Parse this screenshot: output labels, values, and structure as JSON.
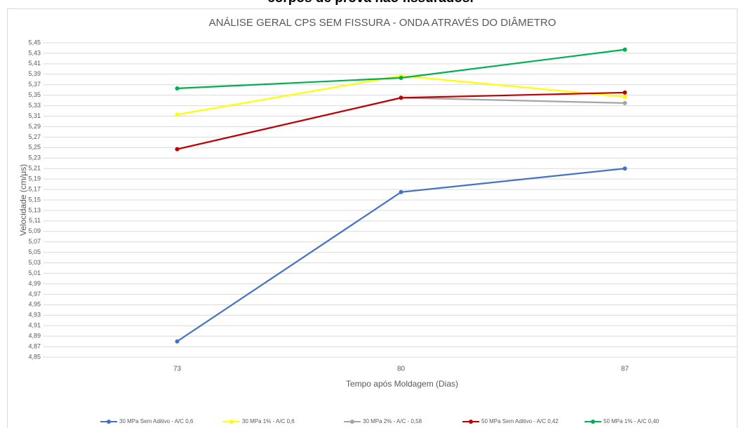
{
  "caption": "corpos de prova não fissurados.",
  "chart_data": {
    "type": "line",
    "title": "ANÁLISE GERAL CPS SEM FISSURA - ONDA ATRAVÉS DO DIÂMETRO",
    "xlabel": "Tempo após Moldagem (Dias)",
    "ylabel": "Velocidade (cm/μs)",
    "categories": [
      "73",
      "80",
      "87"
    ],
    "series": [
      {
        "name": "30 MPa Sem Aditivo - A/C 0,6",
        "color": "#4472c4",
        "values": [
          4.88,
          5.165,
          5.21
        ]
      },
      {
        "name": "30 MPa 1% - A/C 0,6",
        "color": "#ffff00",
        "values": [
          5.313,
          5.387,
          5.347
        ]
      },
      {
        "name": "30 MPa 2% - A/C - 0,58",
        "color": "#a5a5a5",
        "values": [
          5.247,
          5.345,
          5.335
        ]
      },
      {
        "name": "50 MPa Sem Aditivo - A/C 0,42",
        "color": "#c00000",
        "values": [
          5.247,
          5.345,
          5.355
        ]
      },
      {
        "name": "50 MPa 1% - A/C 0,40",
        "color": "#00b050",
        "values": [
          5.363,
          5.383,
          5.437
        ]
      }
    ],
    "ylim": [
      4.85,
      5.45
    ],
    "yticks": [
      {
        "value": 4.85,
        "label": "4,85"
      },
      {
        "value": 4.87,
        "label": "4,87"
      },
      {
        "value": 4.89,
        "label": "4,89"
      },
      {
        "value": 4.91,
        "label": "4,91"
      },
      {
        "value": 4.93,
        "label": "4,93"
      },
      {
        "value": 4.95,
        "label": "4,95"
      },
      {
        "value": 4.97,
        "label": "4,97"
      },
      {
        "value": 4.99,
        "label": "4,99"
      },
      {
        "value": 5.01,
        "label": "5,01"
      },
      {
        "value": 5.03,
        "label": "5,03"
      },
      {
        "value": 5.05,
        "label": "5,05"
      },
      {
        "value": 5.07,
        "label": "5,07"
      },
      {
        "value": 5.09,
        "label": "5,09"
      },
      {
        "value": 5.11,
        "label": "5,11"
      },
      {
        "value": 5.13,
        "label": "5,13"
      },
      {
        "value": 5.15,
        "label": "5,15"
      },
      {
        "value": 5.17,
        "label": "5,17"
      },
      {
        "value": 5.19,
        "label": "5,19"
      },
      {
        "value": 5.21,
        "label": "5,21"
      },
      {
        "value": 5.23,
        "label": "5,23"
      },
      {
        "value": 5.25,
        "label": "5,25"
      },
      {
        "value": 5.27,
        "label": "5,27"
      },
      {
        "value": 5.29,
        "label": "5,29"
      },
      {
        "value": 5.31,
        "label": "5,31"
      },
      {
        "value": 5.33,
        "label": "5,33"
      },
      {
        "value": 5.35,
        "label": "5,35"
      },
      {
        "value": 5.37,
        "label": "5,37"
      },
      {
        "value": 5.39,
        "label": "5,39"
      },
      {
        "value": 5.41,
        "label": "5,41"
      },
      {
        "value": 5.43,
        "label": "5,43"
      },
      {
        "value": 5.45,
        "label": "5,45"
      }
    ],
    "grid": true,
    "legend": "bottom"
  }
}
